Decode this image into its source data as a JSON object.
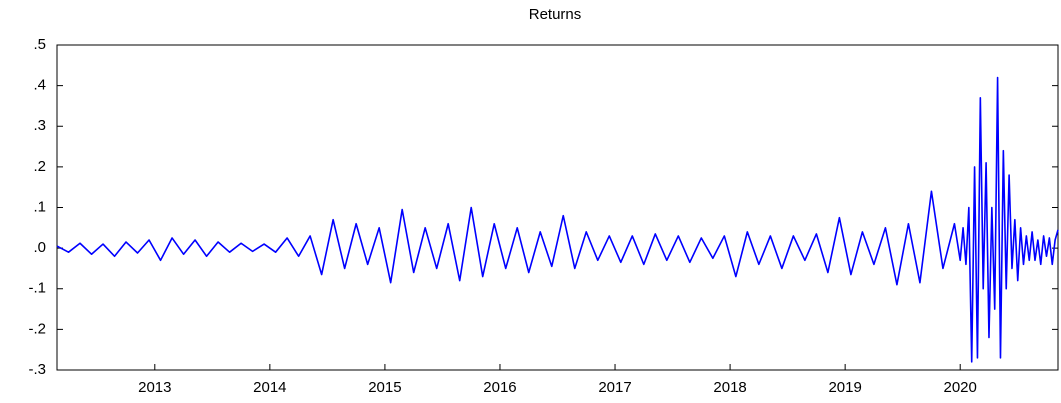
{
  "chart_data": {
    "type": "line",
    "title": "Returns",
    "color": "#0000ff",
    "x": [
      2012.15,
      2012.25,
      2012.35,
      2012.45,
      2012.55,
      2012.65,
      2012.75,
      2012.85,
      2012.95,
      2013.05,
      2013.15,
      2013.25,
      2013.35,
      2013.45,
      2013.55,
      2013.65,
      2013.75,
      2013.85,
      2013.95,
      2014.05,
      2014.15,
      2014.25,
      2014.35,
      2014.45,
      2014.55,
      2014.65,
      2014.75,
      2014.85,
      2014.95,
      2015.05,
      2015.15,
      2015.25,
      2015.35,
      2015.45,
      2015.55,
      2015.65,
      2015.75,
      2015.85,
      2015.95,
      2016.05,
      2016.15,
      2016.25,
      2016.35,
      2016.45,
      2016.55,
      2016.65,
      2016.75,
      2016.85,
      2016.95,
      2017.05,
      2017.15,
      2017.25,
      2017.35,
      2017.45,
      2017.55,
      2017.65,
      2017.75,
      2017.85,
      2017.95,
      2018.05,
      2018.15,
      2018.25,
      2018.35,
      2018.45,
      2018.55,
      2018.65,
      2018.75,
      2018.85,
      2018.95,
      2019.05,
      2019.15,
      2019.25,
      2019.35,
      2019.45,
      2019.55,
      2019.65,
      2019.75,
      2019.85,
      2019.95,
      2020,
      2020.025,
      2020.05,
      2020.075,
      2020.1,
      2020.125,
      2020.15,
      2020.175,
      2020.2,
      2020.225,
      2020.25,
      2020.275,
      2020.3,
      2020.325,
      2020.35,
      2020.375,
      2020.4,
      2020.425,
      2020.45,
      2020.475,
      2020.5,
      2020.525,
      2020.55,
      2020.575,
      2020.6,
      2020.625,
      2020.65,
      2020.675,
      2020.7,
      2020.725,
      2020.75,
      2020.775,
      2020.8,
      2020.825,
      2020.85
    ],
    "values": [
      0.005,
      -0.01,
      0.012,
      -0.015,
      0.01,
      -0.02,
      0.015,
      -0.012,
      0.02,
      -0.03,
      0.025,
      -0.015,
      0.02,
      -0.02,
      0.015,
      -0.01,
      0.012,
      -0.008,
      0.01,
      -0.01,
      0.025,
      -0.02,
      0.03,
      -0.065,
      0.07,
      -0.05,
      0.06,
      -0.04,
      0.05,
      -0.085,
      0.095,
      -0.06,
      0.05,
      -0.05,
      0.06,
      -0.08,
      0.1,
      -0.07,
      0.06,
      -0.05,
      0.05,
      -0.06,
      0.04,
      -0.045,
      0.08,
      -0.05,
      0.04,
      -0.03,
      0.03,
      -0.035,
      0.03,
      -0.04,
      0.035,
      -0.03,
      0.03,
      -0.035,
      0.025,
      -0.025,
      0.03,
      -0.07,
      0.04,
      -0.04,
      0.03,
      -0.05,
      0.03,
      -0.03,
      0.035,
      -0.06,
      0.075,
      -0.065,
      0.04,
      -0.04,
      0.05,
      -0.09,
      0.06,
      -0.085,
      0.14,
      -0.05,
      0.06,
      -0.03,
      0.05,
      -0.04,
      0.1,
      -0.28,
      0.2,
      -0.27,
      0.37,
      -0.1,
      0.21,
      -0.22,
      0.1,
      -0.15,
      0.42,
      -0.27,
      0.24,
      -0.1,
      0.18,
      -0.05,
      0.07,
      -0.08,
      0.05,
      -0.04,
      0.03,
      -0.03,
      0.04,
      -0.03,
      0.02,
      -0.04,
      0.03,
      -0.02,
      0.025,
      -0.04,
      0.02,
      0.045
    ],
    "xlim": [
      2012.15,
      2020.85
    ],
    "xticks": [
      2013,
      2014,
      2015,
      2016,
      2017,
      2018,
      2019,
      2020
    ],
    "ylim": [
      -0.3,
      0.5
    ],
    "yticks": [
      {
        "value": -0.3,
        "label": "-.3"
      },
      {
        "value": -0.2,
        "label": "-.2"
      },
      {
        "value": -0.1,
        "label": "-.1"
      },
      {
        "value": 0,
        "label": ".0"
      },
      {
        "value": 0.1,
        "label": ".1"
      },
      {
        "value": 0.2,
        "label": ".2"
      },
      {
        "value": 0.3,
        "label": ".3"
      },
      {
        "value": 0.4,
        "label": ".4"
      },
      {
        "value": 0.5,
        "label": ".5"
      }
    ],
    "grid": false
  }
}
